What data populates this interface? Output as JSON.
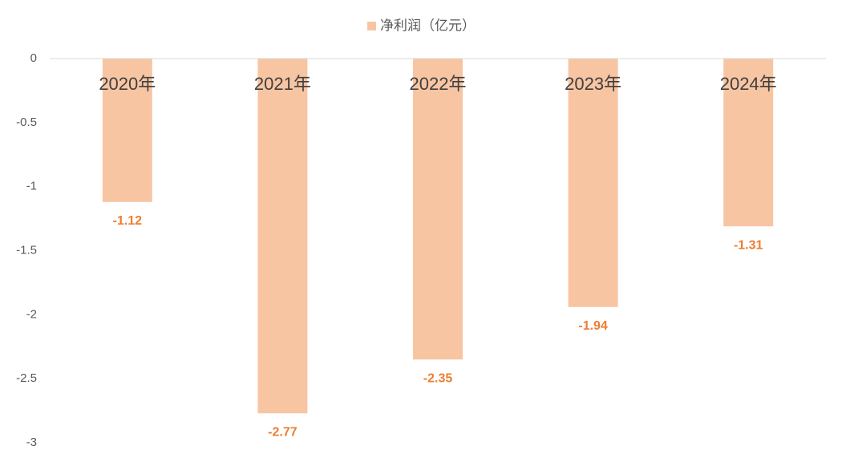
{
  "chart_data": {
    "type": "bar",
    "categories": [
      "2020年",
      "2021年",
      "2022年",
      "2023年",
      "2024年"
    ],
    "series": [
      {
        "name": "净利润（亿元）",
        "color": "#f8c5a3",
        "values": [
          -1.12,
          -2.77,
          -2.35,
          -1.94,
          -1.31
        ]
      }
    ],
    "value_label_color": "#ed7d31",
    "ylim": [
      -3,
      0
    ],
    "yticks": [
      0,
      -0.5,
      -1,
      -1.5,
      -2,
      -2.5,
      -3
    ],
    "grid": false,
    "legend": "top"
  }
}
